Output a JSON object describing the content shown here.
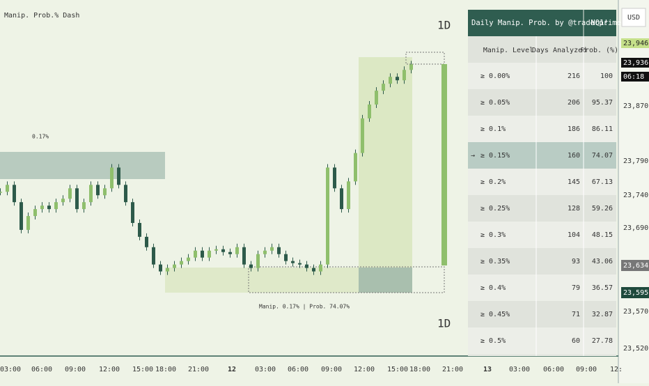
{
  "title": "Manip. Prob.% Dash",
  "chart": {
    "timeframe_top": "1D",
    "timeframe_bottom": "1D",
    "zone_label": "0.17%",
    "summary": "Manip. 0.17% | Prob. 74.07%",
    "closes": [
      23746,
      23756,
      23731,
      23691,
      23711,
      23721,
      23726,
      23721,
      23731,
      23736,
      23751,
      23721,
      23731,
      23756,
      23741,
      23751,
      23781,
      23756,
      23731,
      23701,
      23681,
      23666,
      23641,
      23631,
      23636,
      23641,
      23646,
      23651,
      23661,
      23651,
      23661,
      23663,
      23659,
      23656,
      23666,
      23641,
      23636,
      23656,
      23661,
      23666,
      23656,
      23646,
      23643,
      23641,
      23636,
      23631,
      23641,
      23781,
      23751,
      23721,
      23761,
      23802,
      23852,
      23872,
      23892,
      23902,
      23912,
      23907,
      23922,
      23930
    ]
  },
  "price_axis": {
    "currency": "USD",
    "labels": [
      "23,870.00",
      "23,790.00",
      "23,740.00",
      "23,690.00",
      "23,570.00",
      "23,520.00"
    ],
    "badges": [
      "23,946.25",
      "23,936.50",
      "06:18",
      "23,634.25",
      "23,595.25"
    ]
  },
  "time_axis": [
    "03:00",
    "06:00",
    "09:00",
    "12:00",
    "15:00",
    "18:00",
    "21:00",
    "12",
    "03:00",
    "06:00",
    "09:00",
    "12:00",
    "15:00",
    "18:00",
    "21:00",
    "13",
    "03:00",
    "06:00",
    "09:00",
    "12:"
  ],
  "table": {
    "header": [
      "Daily Manip. Prob. by @traderprimez",
      "NQ1!"
    ],
    "columns": [
      "Manip. Level",
      "Days Analyzed",
      "Prob. (%)"
    ],
    "selected": {
      "row": 3,
      "marker": "→"
    },
    "rows": [
      [
        "≥ 0.00%",
        216,
        100
      ],
      [
        "≥ 0.05%",
        206,
        95.37
      ],
      [
        "≥ 0.1%",
        186,
        86.11
      ],
      [
        "≥ 0.15%",
        160,
        74.07
      ],
      [
        "≥ 0.2%",
        145,
        67.13
      ],
      [
        "≥ 0.25%",
        128,
        59.26
      ],
      [
        "≥ 0.3%",
        104,
        48.15
      ],
      [
        "≥ 0.35%",
        93,
        43.06
      ],
      [
        "≥ 0.4%",
        79,
        36.57
      ],
      [
        "≥ 0.45%",
        71,
        32.87
      ],
      [
        "≥ 0.5%",
        60,
        27.78
      ]
    ]
  }
}
